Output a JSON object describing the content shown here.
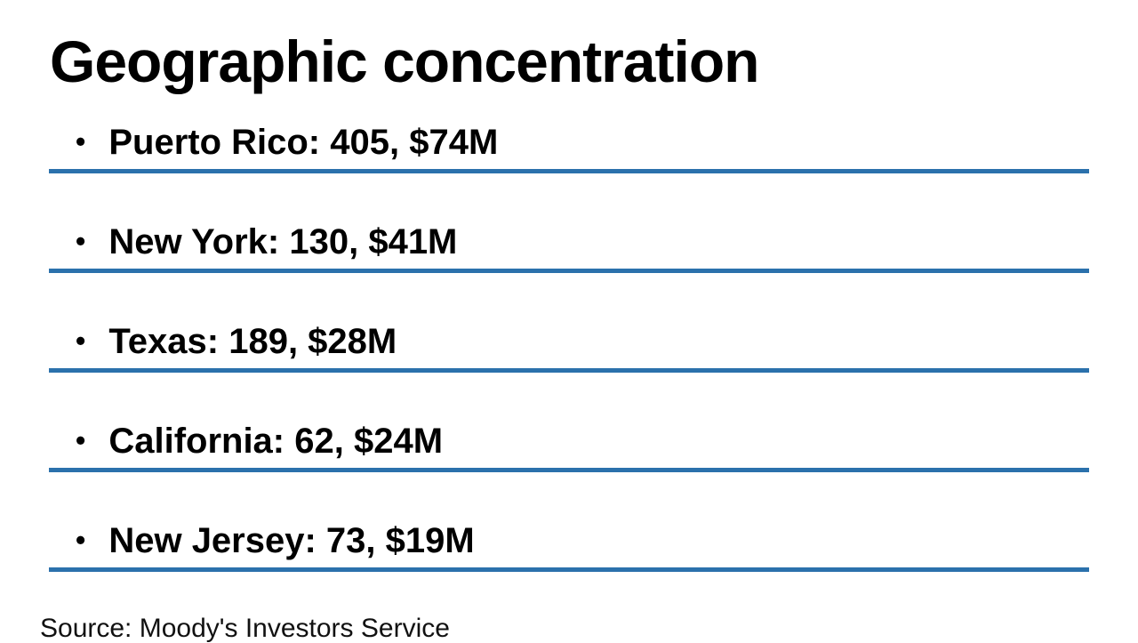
{
  "page": {
    "title": "Geographic concentration",
    "source_note": "Source: Moody's Investors Service",
    "accent_color": "#2b71ac",
    "background_color": "#ffffff",
    "text_color": "#000000"
  },
  "list": {
    "bullet_char": "•",
    "items": [
      {
        "region": "Puerto Rico",
        "count": 405,
        "amount": "$74M",
        "text": "Puerto Rico: 405, $74M"
      },
      {
        "region": "New York",
        "count": 130,
        "amount": "$41M",
        "text": "New York: 130, $41M"
      },
      {
        "region": "Texas",
        "count": 189,
        "amount": "$28M",
        "text": "Texas: 189, $28M"
      },
      {
        "region": "California",
        "count": 62,
        "amount": "$24M",
        "text": "California: 62, $24M"
      },
      {
        "region": "New Jersey",
        "count": 73,
        "amount": "$19M",
        "text": "New Jersey: 73, $19M"
      }
    ]
  }
}
